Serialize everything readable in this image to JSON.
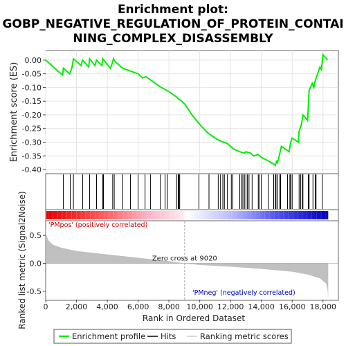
{
  "title_lines": [
    "Enrichment plot:",
    "GOBP_NEGATIVE_REGULATION_OF_PROTEIN_CONTAI",
    "NING_COMPLEX_DISASSEMBLY"
  ],
  "colors": {
    "enrichment_line": "#00ee00",
    "hits": "#000000",
    "metric_fill": "#c0c0c0",
    "pos_label": "#cc0000",
    "neg_label": "#0000cc",
    "zero_cross_line": "#aaaaaa"
  },
  "legend": [
    {
      "label": "Enrichment profile",
      "icon": "green-line-icon"
    },
    {
      "label": "Hits",
      "icon": "black-line-icon"
    },
    {
      "label": "Ranking metric scores",
      "icon": "gray-line-icon"
    }
  ],
  "annotations": {
    "pos": "'PMpos' (positively correlated)",
    "neg": "'PMneg' (negatively correlated)",
    "zero_cross": "Zero cross at 9020"
  },
  "chart_data": [
    {
      "type": "line",
      "name": "enrichment",
      "ylabel": "Enrichment score (ES)",
      "xlim": [
        0,
        19000
      ],
      "ylim": [
        -0.41,
        0.03
      ],
      "yticks": [
        0.0,
        -0.05,
        -0.1,
        -0.15,
        -0.2,
        -0.25,
        -0.3,
        -0.35,
        -0.4
      ],
      "ytick_labels": [
        "0.00",
        "-0.05",
        "-0.10",
        "-0.15",
        "-0.20",
        "-0.25",
        "-0.30",
        "-0.35",
        "-0.40"
      ],
      "grid": true,
      "x": [
        0,
        1100,
        1150,
        1550,
        1700,
        1800,
        2300,
        2400,
        2800,
        2850,
        3200,
        3300,
        3650,
        3700,
        4200,
        4300,
        4400,
        4500,
        5000,
        5500,
        6000,
        6300,
        6500,
        7000,
        7500,
        8000,
        8500,
        9020,
        9500,
        10000,
        10500,
        11000,
        11300,
        11800,
        12200,
        12600,
        12900,
        13000,
        13300,
        13500,
        13800,
        14000,
        14500,
        14800,
        14900,
        15000,
        15050,
        15200,
        15300,
        15800,
        15900,
        16000,
        16400,
        16450,
        16600,
        16700,
        17000,
        17100,
        17300,
        17400,
        17500,
        17800,
        17900,
        18000,
        18300
      ],
      "y": [
        0.0,
        -0.055,
        -0.03,
        -0.05,
        -0.03,
        0.005,
        -0.02,
        0.0,
        -0.025,
        0.005,
        -0.02,
        0.0,
        -0.02,
        0.005,
        -0.03,
        -0.015,
        0.005,
        -0.005,
        -0.03,
        -0.04,
        -0.05,
        -0.065,
        -0.06,
        -0.08,
        -0.1,
        -0.115,
        -0.135,
        -0.16,
        -0.2,
        -0.235,
        -0.265,
        -0.285,
        -0.295,
        -0.305,
        -0.325,
        -0.335,
        -0.34,
        -0.335,
        -0.34,
        -0.35,
        -0.345,
        -0.355,
        -0.37,
        -0.38,
        -0.385,
        -0.37,
        -0.375,
        -0.34,
        -0.315,
        -0.335,
        -0.3,
        -0.285,
        -0.3,
        -0.26,
        -0.235,
        -0.2,
        -0.22,
        -0.11,
        -0.085,
        -0.1,
        -0.075,
        -0.025,
        -0.035,
        0.02,
        0.0
      ]
    },
    {
      "type": "bar",
      "name": "hits",
      "hit_ranks": [
        1150,
        1600,
        1800,
        2400,
        2850,
        3300,
        3700,
        3750,
        4350,
        4450,
        5000,
        5500,
        6000,
        6450,
        6800,
        7450,
        7750,
        7900,
        8500,
        8600,
        8650,
        8700,
        9950,
        10600,
        11200,
        11350,
        11500,
        11600,
        11800,
        12050,
        12150,
        12600,
        12700,
        12800,
        12900,
        13000,
        13100,
        13200,
        13400,
        13800,
        13850,
        14000,
        14450,
        14800,
        14900,
        14950,
        15050,
        15200,
        15250,
        15700,
        15850,
        15900,
        16000,
        16450,
        16550,
        16650,
        16700,
        17050,
        17100,
        17350,
        17500,
        17550,
        17950
      ]
    },
    {
      "type": "area",
      "name": "ranking_metric",
      "ylabel": "Ranked list metric (Signal2Noise)",
      "xlabel": "Rank in Ordered Dataset",
      "xlim": [
        0,
        19000
      ],
      "ylim": [
        -0.65,
        0.75
      ],
      "yticks": [
        0.5,
        0.0,
        -0.5
      ],
      "ytick_labels": [
        "0.5",
        "0.0",
        "-0.5"
      ],
      "xticks": [
        0,
        2000,
        4000,
        6000,
        8000,
        10000,
        12000,
        14000,
        16000,
        18000
      ],
      "xtick_labels": [
        "0",
        "2,000",
        "4,000",
        "6,000",
        "8,000",
        "10,000",
        "12,000",
        "14,000",
        "16,000",
        "18,000"
      ],
      "zero_cross": 9020,
      "x": [
        0,
        50,
        200,
        500,
        1000,
        2000,
        4000,
        6000,
        8000,
        9020,
        10000,
        12000,
        14000,
        16000,
        17000,
        17800,
        18200,
        18300,
        18340
      ],
      "y": [
        0.62,
        0.5,
        0.4,
        0.33,
        0.28,
        0.22,
        0.16,
        0.1,
        0.04,
        0.0,
        -0.03,
        -0.06,
        -0.1,
        -0.15,
        -0.2,
        -0.27,
        -0.36,
        -0.48,
        -0.62
      ]
    }
  ]
}
